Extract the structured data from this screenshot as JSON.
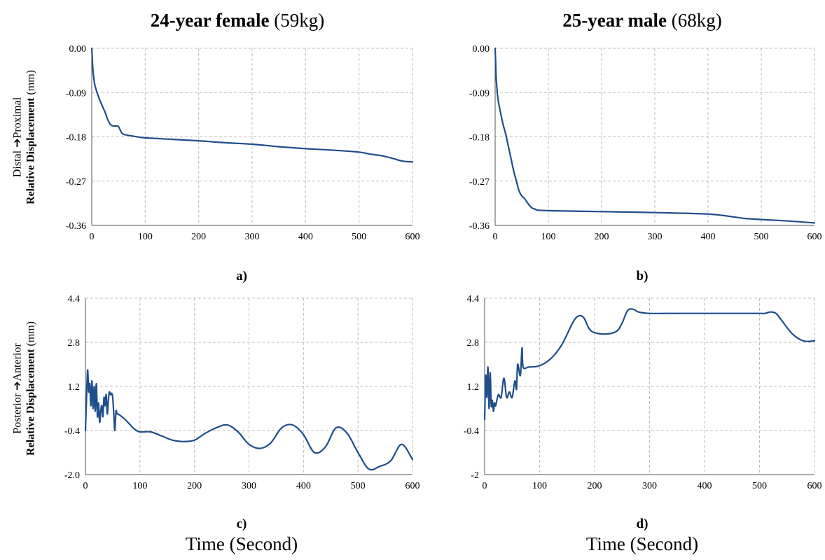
{
  "titles": {
    "left_bold": "24-year female",
    "left_rest": " (59kg)",
    "right_bold": "25-year male",
    "right_rest": " (68kg)"
  },
  "ylabels": {
    "top_line1_a": "Distal ",
    "top_line1_arrow": "➔",
    "top_line1_b": "Proximal",
    "top_line2_bold": "Relative Displacement",
    "top_line2_rest": " (mm)",
    "bottom_line1_a": "Posterior ",
    "bottom_line1_arrow": "➔",
    "bottom_line1_b": "Anterior",
    "bottom_line2_bold": "Relative Displacement",
    "bottom_line2_rest": " (mm)"
  },
  "panel_labels": {
    "a": "a)",
    "b": "b)",
    "c": "c)",
    "d": "d)"
  },
  "xtitles": {
    "left": "Time (Second)",
    "right": "Time (Second)"
  },
  "line_color": "#1f4e8c",
  "chart_data": [
    {
      "id": "a",
      "type": "line",
      "xlim": [
        0,
        600
      ],
      "ylim": [
        -0.36,
        0
      ],
      "xticks": [
        0,
        100,
        200,
        300,
        400,
        500,
        600
      ],
      "yticks": [
        0,
        -0.09,
        -0.18,
        -0.27,
        -0.36
      ],
      "ytick_labels": [
        "0.00",
        "-0.09",
        "-0.18",
        "-0.27",
        "-0.36"
      ],
      "grid": true,
      "x": [
        0,
        1,
        2,
        5,
        10,
        15,
        20,
        25,
        30,
        35,
        40,
        45,
        50,
        55,
        60,
        80,
        100,
        150,
        200,
        250,
        300,
        350,
        400,
        450,
        500,
        520,
        540,
        560,
        580,
        600
      ],
      "y": [
        0,
        -0.02,
        -0.04,
        -0.07,
        -0.09,
        -0.105,
        -0.118,
        -0.13,
        -0.145,
        -0.155,
        -0.158,
        -0.158,
        -0.159,
        -0.17,
        -0.175,
        -0.179,
        -0.182,
        -0.185,
        -0.188,
        -0.192,
        -0.195,
        -0.2,
        -0.204,
        -0.207,
        -0.211,
        -0.215,
        -0.218,
        -0.223,
        -0.229,
        -0.231
      ]
    },
    {
      "id": "b",
      "type": "line",
      "xlim": [
        0,
        600
      ],
      "ylim": [
        -0.36,
        0
      ],
      "xticks": [
        0,
        100,
        200,
        300,
        400,
        500,
        600
      ],
      "yticks": [
        0,
        -0.09,
        -0.18,
        -0.27,
        -0.36
      ],
      "ytick_labels": [
        "0.00",
        "-0.09",
        "-0.18",
        "-0.27",
        "-0.36"
      ],
      "grid": true,
      "x": [
        0,
        1,
        2,
        5,
        10,
        15,
        20,
        25,
        30,
        35,
        40,
        45,
        50,
        55,
        60,
        65,
        70,
        75,
        80,
        100,
        150,
        200,
        300,
        400,
        450,
        470,
        500,
        550,
        600
      ],
      "y": [
        0,
        -0.03,
        -0.06,
        -0.1,
        -0.13,
        -0.155,
        -0.175,
        -0.2,
        -0.225,
        -0.25,
        -0.27,
        -0.29,
        -0.3,
        -0.305,
        -0.313,
        -0.32,
        -0.325,
        -0.327,
        -0.329,
        -0.33,
        -0.331,
        -0.332,
        -0.334,
        -0.337,
        -0.343,
        -0.346,
        -0.348,
        -0.351,
        -0.355
      ]
    },
    {
      "id": "c",
      "type": "line",
      "xlim": [
        0,
        600
      ],
      "ylim": [
        -2.0,
        4.4
      ],
      "xticks": [
        0,
        100,
        200,
        300,
        400,
        500,
        600
      ],
      "yticks": [
        4.4,
        2.8,
        1.2,
        -0.4,
        -2.0
      ],
      "ytick_labels": [
        "4.4",
        "2.8",
        "1.2",
        "-0.4",
        "-2.0"
      ],
      "grid": true,
      "x": [
        0,
        2,
        4,
        6,
        8,
        10,
        12,
        14,
        16,
        18,
        20,
        22,
        24,
        26,
        28,
        30,
        32,
        34,
        36,
        38,
        40,
        42,
        44,
        46,
        48,
        50,
        52,
        54,
        56,
        58,
        60,
        70,
        80,
        90,
        100,
        120,
        140,
        160,
        180,
        200,
        220,
        240,
        260,
        280,
        300,
        320,
        340,
        360,
        380,
        400,
        420,
        440,
        460,
        480,
        500,
        520,
        540,
        560,
        580,
        600
      ],
      "y": [
        -0.4,
        0.8,
        1.8,
        1.0,
        1.3,
        0.5,
        1.4,
        0.4,
        1.2,
        0.3,
        1.3,
        0.1,
        0.6,
        -0.1,
        0.3,
        0.5,
        0.1,
        0.8,
        0.5,
        0.9,
        0.2,
        0.7,
        1.0,
        0.9,
        0.95,
        0.8,
        0.2,
        -0.4,
        0.3,
        0.2,
        0.2,
        0.05,
        -0.15,
        -0.35,
        -0.45,
        -0.45,
        -0.6,
        -0.75,
        -0.8,
        -0.75,
        -0.5,
        -0.3,
        -0.2,
        -0.45,
        -0.9,
        -1.05,
        -0.85,
        -0.3,
        -0.2,
        -0.55,
        -1.2,
        -1.0,
        -0.3,
        -0.5,
        -1.2,
        -1.8,
        -1.7,
        -1.5,
        -0.9,
        -1.45
      ]
    },
    {
      "id": "d",
      "type": "line",
      "xlim": [
        0,
        600
      ],
      "ylim": [
        -2,
        4.4
      ],
      "xticks": [
        0,
        100,
        200,
        300,
        400,
        500,
        600
      ],
      "yticks": [
        4.4,
        2.8,
        1.2,
        -0.4,
        -2
      ],
      "ytick_labels": [
        "4.4",
        "2.8",
        "1.2",
        "-0.4",
        "-2"
      ],
      "grid": true,
      "x": [
        0,
        2,
        4,
        6,
        8,
        10,
        12,
        14,
        16,
        18,
        20,
        25,
        30,
        35,
        40,
        45,
        50,
        55,
        58,
        60,
        65,
        68,
        70,
        80,
        100,
        120,
        140,
        160,
        170,
        180,
        190,
        200,
        220,
        240,
        250,
        260,
        270,
        280,
        300,
        350,
        400,
        450,
        500,
        510,
        520,
        530,
        540,
        560,
        580,
        600
      ],
      "y": [
        0.0,
        1.6,
        0.8,
        1.9,
        0.4,
        1.7,
        0.5,
        0.7,
        0.3,
        0.6,
        0.5,
        0.9,
        0.8,
        1.5,
        0.8,
        1.0,
        0.8,
        1.4,
        1.1,
        2.0,
        1.6,
        2.6,
        1.9,
        1.9,
        1.95,
        2.2,
        2.7,
        3.5,
        3.75,
        3.7,
        3.3,
        3.15,
        3.1,
        3.2,
        3.5,
        3.95,
        4.0,
        3.9,
        3.85,
        3.85,
        3.85,
        3.85,
        3.85,
        3.85,
        3.9,
        3.85,
        3.6,
        3.1,
        2.85,
        2.85
      ]
    }
  ]
}
